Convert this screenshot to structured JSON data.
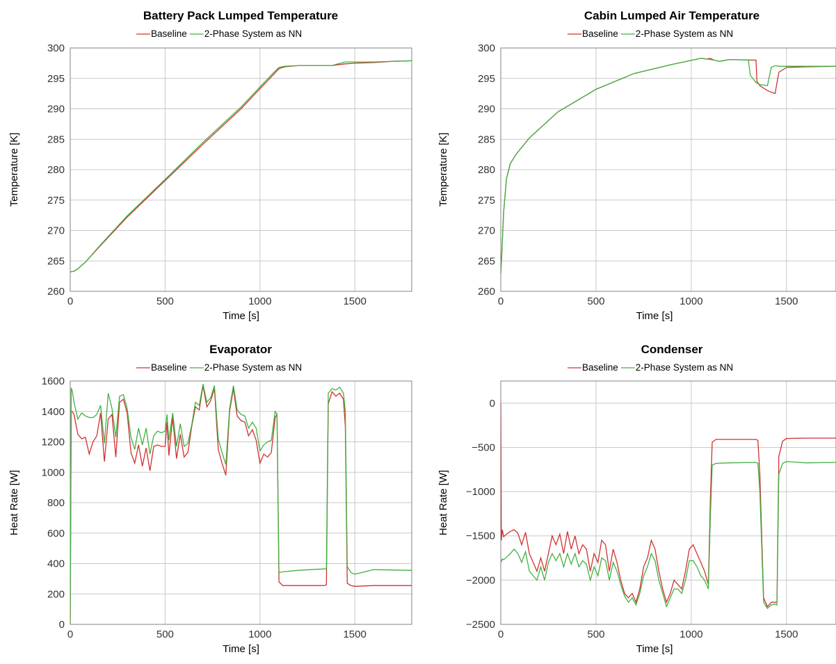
{
  "chart_data": [
    {
      "type": "line",
      "title": "Battery Pack Lumped Temperature",
      "xlabel": "Time [s]",
      "ylabel": "Temperature [K]",
      "xlim": [
        0,
        1800
      ],
      "ylim": [
        260,
        300
      ],
      "xticks": [
        0,
        500,
        1000,
        1500
      ],
      "yticks": [
        260,
        265,
        270,
        275,
        280,
        285,
        290,
        295,
        300
      ],
      "grid": true,
      "legend": "top-center",
      "series": [
        {
          "name": "Baseline",
          "color": "#d03030",
          "x": [
            0,
            20,
            40,
            80,
            150,
            300,
            500,
            700,
            900,
            1000,
            1070,
            1100,
            1130,
            1200,
            1300,
            1380,
            1400,
            1450,
            1500,
            1600,
            1700,
            1800
          ],
          "y": [
            263.2,
            263.3,
            263.7,
            264.8,
            267.2,
            272.2,
            278.2,
            284.2,
            290.0,
            293.3,
            295.6,
            296.6,
            296.9,
            297.1,
            297.1,
            297.1,
            297.2,
            297.4,
            297.5,
            297.6,
            297.8,
            297.9
          ]
        },
        {
          "name": "2-Phase System as NN",
          "color": "#40b040",
          "x": [
            0,
            20,
            40,
            80,
            150,
            300,
            500,
            700,
            900,
            1000,
            1070,
            1100,
            1130,
            1200,
            1300,
            1380,
            1400,
            1450,
            1500,
            1600,
            1700,
            1800
          ],
          "y": [
            263.2,
            263.3,
            263.7,
            264.8,
            267.3,
            272.4,
            278.4,
            284.5,
            290.3,
            293.6,
            295.9,
            296.8,
            297.0,
            297.1,
            297.1,
            297.1,
            297.3,
            297.7,
            297.7,
            297.7,
            297.8,
            297.9
          ]
        }
      ]
    },
    {
      "type": "line",
      "title": "Cabin Lumped Air Temperature",
      "xlabel": "Time [s]",
      "ylabel": "Temperature [K]",
      "xlim": [
        0,
        1760
      ],
      "ylim": [
        260,
        300
      ],
      "xticks": [
        0,
        500,
        1000,
        1500
      ],
      "yticks": [
        260,
        265,
        270,
        275,
        280,
        285,
        290,
        295,
        300
      ],
      "grid": true,
      "legend": "top-center",
      "series": [
        {
          "name": "Baseline",
          "color": "#d03030",
          "x": [
            0,
            5,
            15,
            30,
            50,
            80,
            150,
            300,
            500,
            700,
            900,
            1050,
            1080,
            1100,
            1120,
            1150,
            1200,
            1340,
            1345,
            1360,
            1400,
            1440,
            1460,
            1500,
            1600,
            1760
          ],
          "y": [
            263.0,
            266.0,
            273.0,
            278.5,
            281.0,
            282.5,
            285.2,
            289.5,
            293.2,
            295.8,
            297.3,
            298.3,
            298.2,
            298.3,
            298.0,
            297.8,
            298.1,
            298.0,
            294.5,
            293.8,
            293.0,
            292.5,
            296.0,
            296.8,
            296.9,
            297.0
          ]
        },
        {
          "name": "2-Phase System as NN",
          "color": "#40b040",
          "x": [
            0,
            5,
            15,
            30,
            50,
            80,
            150,
            300,
            500,
            700,
            900,
            1050,
            1080,
            1100,
            1120,
            1150,
            1200,
            1300,
            1310,
            1340,
            1360,
            1380,
            1400,
            1420,
            1440,
            1460,
            1500,
            1600,
            1760
          ],
          "y": [
            263.0,
            266.0,
            273.0,
            278.5,
            281.0,
            282.5,
            285.2,
            289.5,
            293.2,
            295.8,
            297.3,
            298.3,
            298.2,
            298.1,
            298.0,
            297.8,
            298.1,
            298.0,
            295.5,
            294.3,
            294.0,
            293.9,
            293.8,
            296.8,
            297.1,
            297.0,
            297.0,
            297.0,
            297.0
          ]
        }
      ]
    },
    {
      "type": "line",
      "title": "Evaporator",
      "xlabel": "Time [s]",
      "ylabel": "Heat Rate [W]",
      "xlim": [
        0,
        1800
      ],
      "ylim": [
        0,
        1600
      ],
      "xticks": [
        0,
        500,
        1000,
        1500
      ],
      "yticks": [
        0,
        200,
        400,
        600,
        800,
        1000,
        1200,
        1400,
        1600
      ],
      "grid": true,
      "legend": "top-center",
      "series": [
        {
          "name": "Baseline",
          "color": "#d03030",
          "x": [
            0,
            5,
            10,
            20,
            40,
            60,
            80,
            100,
            120,
            140,
            160,
            180,
            200,
            220,
            240,
            260,
            280,
            300,
            320,
            340,
            360,
            380,
            400,
            420,
            440,
            460,
            480,
            500,
            510,
            520,
            540,
            560,
            580,
            600,
            620,
            640,
            660,
            680,
            700,
            720,
            740,
            760,
            780,
            800,
            820,
            840,
            860,
            880,
            900,
            920,
            940,
            960,
            980,
            1000,
            1020,
            1040,
            1060,
            1080,
            1090,
            1100,
            1120,
            1200,
            1340,
            1350,
            1360,
            1380,
            1400,
            1420,
            1440,
            1450,
            1460,
            1480,
            1500,
            1600,
            1800
          ],
          "y": [
            0,
            1400,
            1400,
            1380,
            1250,
            1220,
            1230,
            1120,
            1200,
            1240,
            1390,
            1070,
            1350,
            1380,
            1100,
            1460,
            1480,
            1390,
            1130,
            1060,
            1180,
            1040,
            1160,
            1010,
            1170,
            1180,
            1170,
            1170,
            1330,
            1110,
            1360,
            1090,
            1250,
            1100,
            1130,
            1300,
            1430,
            1410,
            1570,
            1430,
            1470,
            1550,
            1150,
            1060,
            980,
            1400,
            1550,
            1370,
            1340,
            1330,
            1240,
            1280,
            1210,
            1060,
            1120,
            1100,
            1130,
            1360,
            1380,
            280,
            255,
            255,
            255,
            260,
            1450,
            1530,
            1500,
            1520,
            1480,
            1300,
            270,
            255,
            250,
            255,
            255
          ]
        },
        {
          "name": "2-Phase System as NN",
          "color": "#40b040",
          "x": [
            0,
            5,
            10,
            20,
            40,
            60,
            80,
            100,
            120,
            140,
            160,
            180,
            200,
            220,
            240,
            260,
            280,
            300,
            320,
            340,
            360,
            380,
            400,
            420,
            440,
            460,
            480,
            500,
            510,
            520,
            540,
            560,
            580,
            600,
            620,
            640,
            660,
            680,
            700,
            720,
            740,
            760,
            780,
            800,
            820,
            840,
            860,
            880,
            900,
            920,
            940,
            960,
            980,
            1000,
            1020,
            1040,
            1060,
            1080,
            1090,
            1100,
            1120,
            1200,
            1340,
            1350,
            1360,
            1380,
            1400,
            1420,
            1440,
            1450,
            1460,
            1480,
            1500,
            1600,
            1800
          ],
          "y": [
            0,
            1550,
            1540,
            1460,
            1350,
            1390,
            1370,
            1360,
            1360,
            1380,
            1440,
            1190,
            1520,
            1420,
            1230,
            1500,
            1510,
            1420,
            1230,
            1150,
            1290,
            1180,
            1290,
            1120,
            1240,
            1270,
            1260,
            1270,
            1380,
            1210,
            1390,
            1170,
            1320,
            1170,
            1190,
            1310,
            1460,
            1440,
            1580,
            1460,
            1490,
            1570,
            1220,
            1130,
            1050,
            1420,
            1570,
            1410,
            1380,
            1370,
            1290,
            1330,
            1290,
            1140,
            1180,
            1200,
            1210,
            1400,
            1380,
            340,
            345,
            355,
            365,
            365,
            1520,
            1550,
            1540,
            1560,
            1520,
            1400,
            380,
            340,
            330,
            360,
            355
          ]
        }
      ]
    },
    {
      "type": "line",
      "title": "Condenser",
      "xlabel": "Time [s]",
      "ylabel": "Heat Rate [W]",
      "xlim": [
        0,
        1760
      ],
      "ylim": [
        -2500,
        250
      ],
      "xticks": [
        0,
        500,
        1000,
        1500
      ],
      "yticks": [
        -2500,
        -2000,
        -1500,
        -1000,
        -500,
        0
      ],
      "grid": true,
      "legend": "top-center",
      "series": [
        {
          "name": "Baseline",
          "color": "#d03030",
          "x": [
            0,
            3,
            8,
            15,
            30,
            50,
            70,
            90,
            110,
            130,
            150,
            170,
            190,
            210,
            230,
            250,
            270,
            290,
            310,
            330,
            350,
            370,
            390,
            410,
            430,
            450,
            470,
            490,
            510,
            530,
            550,
            570,
            590,
            610,
            630,
            650,
            670,
            690,
            710,
            730,
            750,
            770,
            790,
            810,
            830,
            850,
            870,
            890,
            910,
            930,
            950,
            970,
            990,
            1010,
            1030,
            1050,
            1070,
            1090,
            1100,
            1110,
            1130,
            1200,
            1340,
            1350,
            1360,
            1380,
            1400,
            1420,
            1440,
            1450,
            1460,
            1480,
            1500,
            1600,
            1760
          ],
          "y": [
            0,
            -1550,
            -1430,
            -1510,
            -1480,
            -1450,
            -1430,
            -1470,
            -1600,
            -1460,
            -1700,
            -1800,
            -1900,
            -1750,
            -1900,
            -1700,
            -1500,
            -1600,
            -1480,
            -1700,
            -1450,
            -1650,
            -1500,
            -1700,
            -1600,
            -1650,
            -1900,
            -1700,
            -1800,
            -1550,
            -1600,
            -1900,
            -1650,
            -1800,
            -2000,
            -2150,
            -2200,
            -2150,
            -2250,
            -2100,
            -1850,
            -1750,
            -1550,
            -1650,
            -1900,
            -2100,
            -2250,
            -2150,
            -2000,
            -2050,
            -2100,
            -1900,
            -1650,
            -1600,
            -1700,
            -1800,
            -1900,
            -2050,
            -1100,
            -440,
            -410,
            -410,
            -410,
            -420,
            -800,
            -2200,
            -2300,
            -2250,
            -2250,
            -2250,
            -600,
            -430,
            -400,
            -395,
            -395
          ]
        },
        {
          "name": "2-Phase System as NN",
          "color": "#40b040",
          "x": [
            0,
            3,
            8,
            15,
            30,
            50,
            70,
            90,
            110,
            130,
            150,
            170,
            190,
            210,
            230,
            250,
            270,
            290,
            310,
            330,
            350,
            370,
            390,
            410,
            430,
            450,
            470,
            490,
            510,
            530,
            550,
            570,
            590,
            610,
            630,
            650,
            670,
            690,
            710,
            730,
            750,
            770,
            790,
            810,
            830,
            850,
            870,
            890,
            910,
            930,
            950,
            970,
            990,
            1010,
            1030,
            1050,
            1070,
            1090,
            1100,
            1110,
            1130,
            1200,
            1340,
            1350,
            1360,
            1380,
            1400,
            1420,
            1440,
            1450,
            1460,
            1480,
            1500,
            1600,
            1760
          ],
          "y": [
            -1780,
            -1790,
            -1760,
            -1770,
            -1740,
            -1700,
            -1650,
            -1700,
            -1800,
            -1680,
            -1900,
            -1950,
            -2000,
            -1850,
            -2000,
            -1800,
            -1700,
            -1780,
            -1700,
            -1850,
            -1700,
            -1820,
            -1700,
            -1850,
            -1780,
            -1820,
            -2000,
            -1850,
            -1950,
            -1750,
            -1780,
            -2000,
            -1800,
            -1900,
            -2050,
            -2180,
            -2250,
            -2200,
            -2280,
            -2150,
            -1950,
            -1850,
            -1700,
            -1780,
            -2000,
            -2150,
            -2300,
            -2200,
            -2100,
            -2100,
            -2150,
            -2000,
            -1780,
            -1780,
            -1850,
            -1950,
            -2000,
            -2100,
            -1300,
            -700,
            -680,
            -675,
            -670,
            -680,
            -1000,
            -2250,
            -2320,
            -2280,
            -2270,
            -2280,
            -800,
            -680,
            -660,
            -675,
            -670
          ]
        }
      ]
    }
  ]
}
